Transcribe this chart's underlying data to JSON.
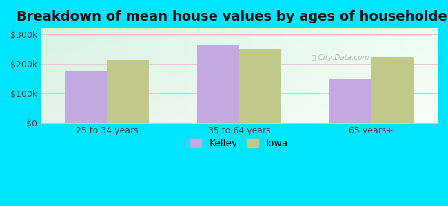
{
  "title": "Breakdown of mean house values by ages of householders",
  "categories": [
    "25 to 34 years",
    "35 to 64 years",
    "65 years+"
  ],
  "kelley_values": [
    175000,
    262000,
    148000
  ],
  "iowa_values": [
    213000,
    248000,
    222000
  ],
  "kelley_color": "#c4a8e0",
  "iowa_color": "#c0c88a",
  "background_outer": "#00e5ff",
  "yticks": [
    0,
    100000,
    200000,
    300000
  ],
  "ytick_labels": [
    "$0",
    "$100k",
    "$200k",
    "$300k"
  ],
  "ylim": [
    0,
    320000
  ],
  "legend_labels": [
    "Kelley",
    "Iowa"
  ],
  "title_fontsize": 14,
  "tick_fontsize": 9,
  "legend_fontsize": 10,
  "bar_width": 0.32
}
